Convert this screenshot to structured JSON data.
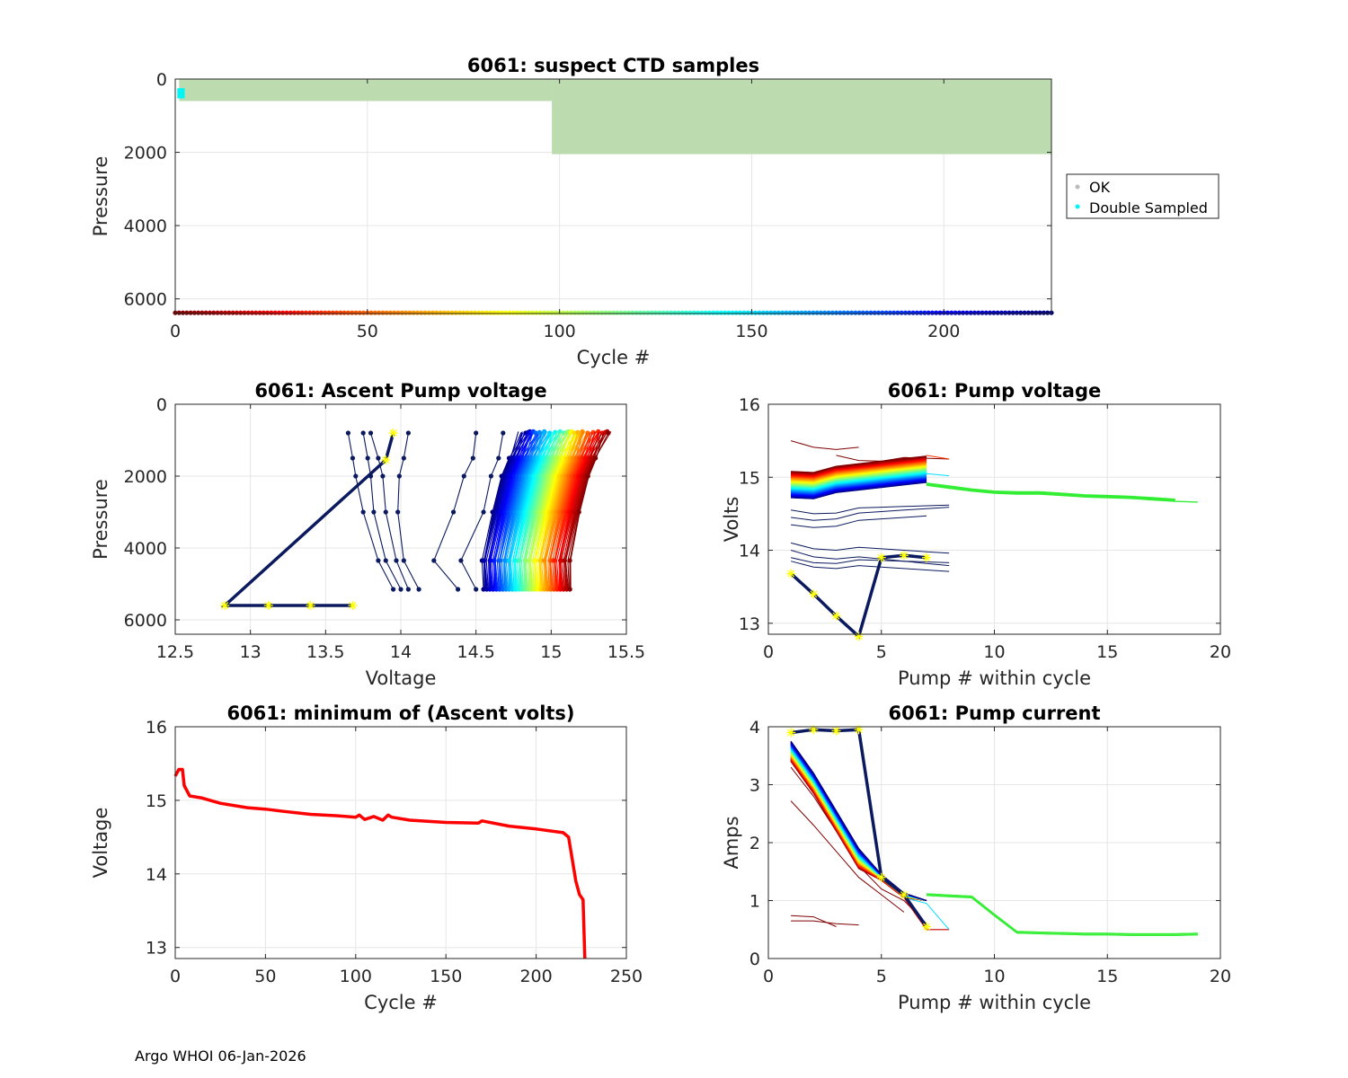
{
  "footer": "Argo WHOI 06-Jan-2026",
  "colors": {
    "ok": "#bcdcb0",
    "double": "#00f5f5",
    "legend_ok": "#bbbbbb",
    "navy": "#0b1a5e",
    "marker": "#ffff00",
    "min_line": "#ff0000"
  },
  "chart_data": [
    {
      "id": "suspect",
      "type": "scatter",
      "title": "6061: suspect CTD samples",
      "xlabel": "Cycle #",
      "ylabel": "Pressure",
      "xlim": [
        0,
        228
      ],
      "ylim": [
        0,
        6400
      ],
      "y_reversed": true,
      "xticks": [
        0,
        50,
        100,
        150,
        200
      ],
      "yticks": [
        0,
        2000,
        4000,
        6000
      ],
      "xtick_labels": [
        "0",
        "50",
        "100",
        "150",
        "200"
      ],
      "ytick_labels": [
        "0",
        "2000",
        "4000",
        "6000"
      ],
      "legend": [
        "OK",
        "Double Sampled"
      ],
      "legend_position": "outside-right",
      "ok_regions": [
        {
          "x0": 1,
          "x1": 98,
          "p0": 0,
          "p1": 600
        },
        {
          "x0": 98,
          "x1": 228,
          "p0": 0,
          "p1": 2050
        }
      ],
      "double_sampled": {
        "x": [
          1,
          2
        ],
        "p0": 250,
        "p1": 530
      },
      "cycle_color_strip": {
        "pressure": 6380,
        "count": 228
      }
    },
    {
      "id": "ascent",
      "type": "line",
      "title": "6061: Ascent Pump voltage",
      "xlabel": "Voltage",
      "ylabel": "Pressure",
      "xlim": [
        12.5,
        15.5
      ],
      "ylim": [
        0,
        6400
      ],
      "y_reversed": true,
      "xticks": [
        12.5,
        13,
        13.5,
        14,
        14.5,
        15,
        15.5
      ],
      "yticks": [
        0,
        2000,
        4000,
        6000
      ],
      "xtick_labels": [
        "12.5",
        "13",
        "13.5",
        "14",
        "14.5",
        "15",
        "15.5"
      ],
      "ytick_labels": [
        "0",
        "2000",
        "4000",
        "6000"
      ],
      "profile_pressures": [
        5150,
        4350,
        3000,
        2000,
        1500,
        800
      ],
      "num_colored_profiles": 110,
      "low_profiles": [
        [
          13.95,
          13.85,
          13.75,
          13.7,
          13.68,
          13.65
        ],
        [
          14.0,
          13.9,
          13.82,
          13.8,
          13.78,
          13.75
        ],
        [
          14.05,
          13.97,
          13.9,
          13.88,
          13.85,
          13.8
        ],
        [
          14.12,
          14.02,
          13.98,
          13.99,
          14.02,
          14.05
        ],
        [
          14.38,
          14.22,
          14.35,
          14.42,
          14.48,
          14.5
        ],
        [
          14.5,
          14.4,
          14.55,
          14.6,
          14.65,
          14.68
        ]
      ],
      "anomaly": {
        "v": [
          13.95,
          13.9,
          12.83,
          13.12,
          13.4,
          13.68
        ],
        "p": [
          800,
          1550,
          5600,
          5600,
          5600,
          5600
        ]
      }
    },
    {
      "id": "pumpvolt",
      "type": "line",
      "title": "6061: Pump voltage",
      "xlabel": "Pump # within cycle",
      "ylabel": "Volts",
      "xlim": [
        0,
        20
      ],
      "ylim": [
        12.85,
        16
      ],
      "xticks": [
        0,
        5,
        10,
        15,
        20
      ],
      "yticks": [
        13,
        14,
        15,
        16
      ],
      "xtick_labels": [
        "0",
        "5",
        "10",
        "15",
        "20"
      ],
      "ytick_labels": [
        "13",
        "14",
        "15",
        "16"
      ],
      "long_series": {
        "x": [
          7,
          8,
          9,
          10,
          11,
          12,
          13,
          14,
          15,
          16,
          17,
          18
        ],
        "y": [
          14.92,
          14.88,
          14.84,
          14.81,
          14.8,
          14.8,
          14.78,
          14.76,
          14.75,
          14.74,
          14.72,
          14.7
        ]
      },
      "anomaly": {
        "x": [
          1,
          2,
          3,
          4,
          5,
          6,
          7
        ],
        "y": [
          13.68,
          13.4,
          13.1,
          12.82,
          13.9,
          13.93,
          13.9
        ]
      }
    },
    {
      "id": "minvolt",
      "type": "line",
      "title": "6061: minimum of (Ascent volts)",
      "xlabel": "Cycle #",
      "ylabel": "Voltage",
      "xlim": [
        0,
        250
      ],
      "ylim": [
        12.85,
        16
      ],
      "xticks": [
        0,
        50,
        100,
        150,
        200,
        250
      ],
      "yticks": [
        13,
        14,
        15,
        16
      ],
      "xtick_labels": [
        "0",
        "50",
        "100",
        "150",
        "200",
        "250"
      ],
      "ytick_labels": [
        "13",
        "14",
        "15",
        "16"
      ],
      "x": [
        0,
        2,
        4,
        5,
        8,
        15,
        25,
        40,
        50,
        60,
        75,
        90,
        100,
        102,
        105,
        110,
        115,
        118,
        120,
        130,
        150,
        168,
        170,
        185,
        200,
        215,
        218,
        222,
        224,
        226,
        227
      ],
      "y": [
        15.33,
        15.42,
        15.42,
        15.2,
        15.06,
        15.03,
        14.96,
        14.9,
        14.88,
        14.85,
        14.81,
        14.79,
        14.77,
        14.8,
        14.74,
        14.78,
        14.73,
        14.8,
        14.77,
        14.73,
        14.7,
        14.69,
        14.72,
        14.65,
        14.61,
        14.56,
        14.5,
        13.9,
        13.72,
        13.65,
        12.85
      ]
    },
    {
      "id": "pumpcurrent",
      "type": "line",
      "title": "6061: Pump current",
      "xlabel": "Pump # within cycle",
      "ylabel": "Amps",
      "xlim": [
        0,
        20
      ],
      "ylim": [
        0,
        4
      ],
      "xticks": [
        0,
        5,
        10,
        15,
        20
      ],
      "yticks": [
        0,
        1,
        2,
        3,
        4
      ],
      "xtick_labels": [
        "0",
        "5",
        "10",
        "15",
        "20"
      ],
      "ytick_labels": [
        "0",
        "1",
        "2",
        "3",
        "4"
      ],
      "long_series": {
        "x": [
          7,
          8,
          9,
          10,
          11,
          12,
          13,
          14,
          15,
          16,
          17,
          18,
          19
        ],
        "y": [
          1.1,
          1.08,
          1.06,
          0.75,
          0.45,
          0.44,
          0.43,
          0.42,
          0.42,
          0.41,
          0.41,
          0.41,
          0.42
        ]
      },
      "anomaly": {
        "x": [
          1,
          2,
          3,
          4,
          5,
          6,
          7
        ],
        "y": [
          3.9,
          3.95,
          3.93,
          3.95,
          1.4,
          1.1,
          0.55
        ]
      }
    }
  ]
}
